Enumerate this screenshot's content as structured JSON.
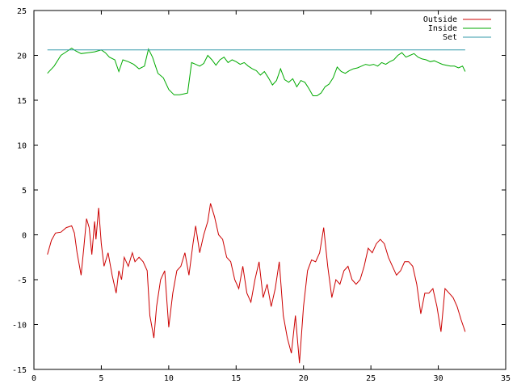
{
  "chart_data": {
    "type": "line",
    "title": "",
    "xlabel": "",
    "ylabel": "",
    "xlim": [
      0,
      35
    ],
    "ylim": [
      -15,
      25
    ],
    "xticks": [
      0,
      5,
      10,
      15,
      20,
      25,
      30,
      35
    ],
    "yticks": [
      -15,
      -10,
      -5,
      0,
      5,
      10,
      15,
      20,
      25
    ],
    "grid": false,
    "legend_position": "top-right",
    "series": [
      {
        "name": "Outside",
        "color": "#cc0000",
        "x": [
          1.0,
          1.3,
          1.6,
          2.0,
          2.4,
          2.8,
          3.0,
          3.2,
          3.5,
          3.7,
          3.9,
          4.1,
          4.3,
          4.5,
          4.6,
          4.8,
          5.0,
          5.2,
          5.5,
          5.8,
          6.1,
          6.3,
          6.5,
          6.7,
          7.0,
          7.3,
          7.5,
          7.8,
          8.1,
          8.4,
          8.6,
          8.9,
          9.1,
          9.4,
          9.7,
          10.0,
          10.3,
          10.6,
          10.9,
          11.2,
          11.5,
          11.8,
          12.0,
          12.3,
          12.6,
          12.9,
          13.1,
          13.4,
          13.7,
          14.0,
          14.3,
          14.6,
          14.9,
          15.2,
          15.5,
          15.8,
          16.1,
          16.4,
          16.7,
          17.0,
          17.3,
          17.6,
          17.9,
          18.2,
          18.5,
          18.8,
          19.1,
          19.4,
          19.7,
          20.0,
          20.3,
          20.6,
          20.9,
          21.2,
          21.5,
          21.8,
          22.1,
          22.4,
          22.7,
          23.0,
          23.3,
          23.6,
          23.9,
          24.2,
          24.5,
          24.8,
          25.1,
          25.4,
          25.7,
          26.0,
          26.3,
          26.6,
          26.9,
          27.2,
          27.5,
          27.8,
          28.1,
          28.4,
          28.7,
          29.0,
          29.3,
          29.6,
          29.9,
          30.2,
          30.5,
          30.8,
          31.1,
          31.4,
          31.7,
          32.0
        ],
        "y": [
          -2.2,
          -0.6,
          0.2,
          0.3,
          0.8,
          1.0,
          0.2,
          -2.0,
          -4.5,
          -1.5,
          1.8,
          0.8,
          -2.2,
          1.5,
          -0.5,
          3.0,
          -1.0,
          -3.5,
          -2.0,
          -4.5,
          -6.5,
          -4.0,
          -5.0,
          -2.5,
          -3.5,
          -2.0,
          -3.0,
          -2.5,
          -3.0,
          -4.0,
          -9.0,
          -11.5,
          -8.0,
          -5.0,
          -4.0,
          -10.3,
          -6.5,
          -4.0,
          -3.5,
          -2.0,
          -4.5,
          -1.0,
          1.0,
          -2.0,
          0.0,
          1.5,
          3.5,
          2.0,
          0.0,
          -0.5,
          -2.5,
          -3.0,
          -5.0,
          -6.0,
          -3.5,
          -6.5,
          -7.5,
          -5.0,
          -3.0,
          -7.0,
          -5.5,
          -8.0,
          -6.0,
          -3.0,
          -9.0,
          -11.5,
          -13.2,
          -9.0,
          -14.3,
          -8.0,
          -4.0,
          -2.8,
          -3.0,
          -2.0,
          0.8,
          -3.5,
          -7.0,
          -5.0,
          -5.5,
          -4.0,
          -3.5,
          -5.0,
          -5.5,
          -5.0,
          -3.5,
          -1.5,
          -2.0,
          -1.0,
          -0.5,
          -1.0,
          -2.5,
          -3.5,
          -4.5,
          -4.0,
          -3.0,
          -3.0,
          -3.5,
          -5.5,
          -8.8,
          -6.5,
          -6.5,
          -6.0,
          -8.0,
          -10.8,
          -6.0,
          -6.5,
          -7.0,
          -8.0,
          -9.5,
          -10.8
        ]
      },
      {
        "name": "Inside",
        "color": "#00aa00",
        "x": [
          1.0,
          1.5,
          2.0,
          2.5,
          2.8,
          3.1,
          3.5,
          4.0,
          4.5,
          5.0,
          5.3,
          5.6,
          6.0,
          6.3,
          6.6,
          7.0,
          7.4,
          7.8,
          8.2,
          8.5,
          8.8,
          9.2,
          9.6,
          10.0,
          10.4,
          10.8,
          11.1,
          11.4,
          11.7,
          12.0,
          12.3,
          12.6,
          12.9,
          13.2,
          13.5,
          13.8,
          14.1,
          14.4,
          14.7,
          15.0,
          15.3,
          15.6,
          15.9,
          16.2,
          16.5,
          16.8,
          17.1,
          17.4,
          17.7,
          18.0,
          18.3,
          18.6,
          18.9,
          19.2,
          19.5,
          19.8,
          20.1,
          20.4,
          20.7,
          21.0,
          21.3,
          21.6,
          21.9,
          22.2,
          22.5,
          22.8,
          23.1,
          23.4,
          23.7,
          24.0,
          24.3,
          24.6,
          24.9,
          25.2,
          25.5,
          25.8,
          26.1,
          26.4,
          26.7,
          27.0,
          27.3,
          27.6,
          27.9,
          28.2,
          28.5,
          28.8,
          29.1,
          29.4,
          29.7,
          30.0,
          30.3,
          30.6,
          30.9,
          31.2,
          31.5,
          31.8,
          32.0
        ],
        "y": [
          18.0,
          18.8,
          20.0,
          20.5,
          20.8,
          20.5,
          20.2,
          20.3,
          20.4,
          20.6,
          20.3,
          19.8,
          19.5,
          18.2,
          19.5,
          19.3,
          19.0,
          18.5,
          18.8,
          20.7,
          19.8,
          18.0,
          17.5,
          16.2,
          15.6,
          15.6,
          15.7,
          15.8,
          19.2,
          19.0,
          18.8,
          19.1,
          20.0,
          19.5,
          18.9,
          19.5,
          19.8,
          19.2,
          19.5,
          19.3,
          19.0,
          19.2,
          18.8,
          18.5,
          18.3,
          17.8,
          18.2,
          17.5,
          16.7,
          17.2,
          18.5,
          17.3,
          17.0,
          17.4,
          16.5,
          17.2,
          17.0,
          16.3,
          15.5,
          15.5,
          15.8,
          16.5,
          16.8,
          17.5,
          18.7,
          18.2,
          18.0,
          18.3,
          18.5,
          18.6,
          18.8,
          19.0,
          18.9,
          19.0,
          18.8,
          19.2,
          19.0,
          19.3,
          19.5,
          20.0,
          20.3,
          19.8,
          20.0,
          20.2,
          19.8,
          19.6,
          19.5,
          19.3,
          19.4,
          19.2,
          19.0,
          18.9,
          18.8,
          18.8,
          18.6,
          18.8,
          18.2
        ]
      },
      {
        "name": "Set",
        "color": "#3399aa",
        "x": [
          1.0,
          32.0
        ],
        "y": [
          20.6,
          20.6
        ]
      }
    ]
  }
}
